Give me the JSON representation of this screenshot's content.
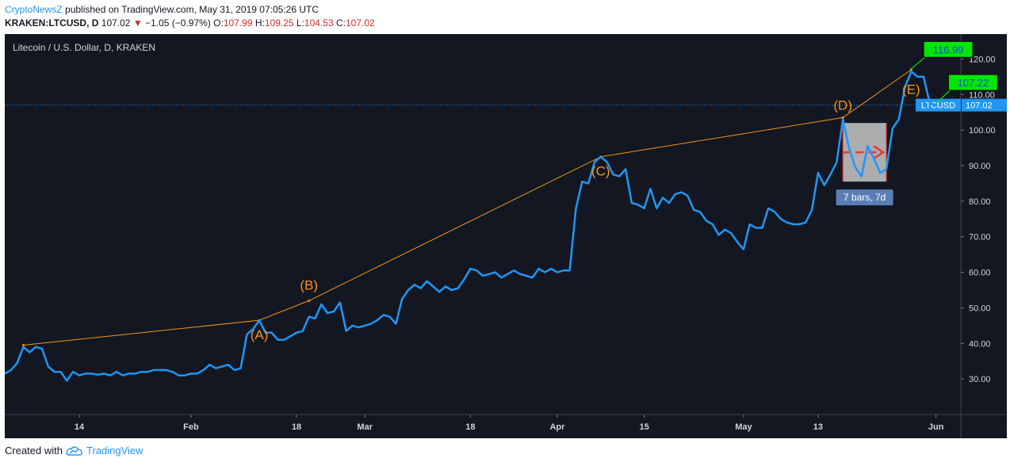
{
  "header": {
    "brand": "CryptoNewsZ",
    "published_text": " published on TradingView.com, May 31, 2019 07:05:26 UTC"
  },
  "quote": {
    "symbol": "KRAKEN:LTCUSD, D",
    "last": "107.02",
    "down_arrow": "▼",
    "change": "−1.05 (−0.97%)",
    "o_label": "O:",
    "o_val": "107.99",
    "h_label": "H:",
    "h_val": "109.25",
    "l_label": "L:",
    "l_val": "104.53",
    "c_label": "C:",
    "c_val": "107.02"
  },
  "footer": {
    "created_with": "Created with",
    "tradingview": "TradingView",
    "logo_icon": "tradingview-cloud-icon"
  },
  "colors": {
    "background": "#131722",
    "price_line": "#2196f3",
    "trend_line": "#f7931a",
    "label_green": "#00e600",
    "box_fill": "#c8c8c8",
    "arrow_red": "#e53935"
  },
  "chart_data": {
    "type": "line",
    "title": "Litecoin / U.S. Dollar, D, KRAKEN",
    "xlabel": "",
    "ylabel": "",
    "ylim": [
      20,
      127
    ],
    "yticks": [
      30,
      40,
      50,
      60,
      70,
      80,
      90,
      100,
      110,
      120
    ],
    "ytick_labels": [
      "30.00",
      "40.00",
      "50.00",
      "60.00",
      "70.00",
      "80.00",
      "90.00",
      "100.00",
      "110.00",
      "120.00"
    ],
    "x_start": "2019-01-02",
    "x_end": "2019-06-05",
    "xticks": [
      {
        "date": "2019-01-14",
        "label": "14"
      },
      {
        "date": "2019-02-01",
        "label": "Feb"
      },
      {
        "date": "2019-02-18",
        "label": "18"
      },
      {
        "date": "2019-03-01",
        "label": "Mar"
      },
      {
        "date": "2019-03-18",
        "label": "18"
      },
      {
        "date": "2019-04-01",
        "label": "Apr"
      },
      {
        "date": "2019-04-15",
        "label": "15"
      },
      {
        "date": "2019-05-01",
        "label": "May"
      },
      {
        "date": "2019-05-13",
        "label": "13"
      },
      {
        "date": "2019-06-01",
        "label": "Jun"
      }
    ],
    "series": [
      {
        "name": "LTCUSD",
        "color": "#2196f3",
        "points": [
          [
            "2019-01-02",
            31.5
          ],
          [
            "2019-01-03",
            32.5
          ],
          [
            "2019-01-04",
            34.5
          ],
          [
            "2019-01-05",
            39
          ],
          [
            "2019-01-06",
            37.5
          ],
          [
            "2019-01-07",
            39
          ],
          [
            "2019-01-08",
            38.5
          ],
          [
            "2019-01-09",
            33.5
          ],
          [
            "2019-01-10",
            32
          ],
          [
            "2019-01-11",
            32
          ],
          [
            "2019-01-12",
            29.5
          ],
          [
            "2019-01-13",
            32
          ],
          [
            "2019-01-14",
            31
          ],
          [
            "2019-01-15",
            31.5
          ],
          [
            "2019-01-16",
            31.5
          ],
          [
            "2019-01-17",
            31.2
          ],
          [
            "2019-01-18",
            31.5
          ],
          [
            "2019-01-19",
            31
          ],
          [
            "2019-01-20",
            32
          ],
          [
            "2019-01-21",
            31
          ],
          [
            "2019-01-22",
            31.5
          ],
          [
            "2019-01-23",
            31.5
          ],
          [
            "2019-01-24",
            32
          ],
          [
            "2019-01-25",
            32
          ],
          [
            "2019-01-26",
            32.5
          ],
          [
            "2019-01-27",
            32.5
          ],
          [
            "2019-01-28",
            32.5
          ],
          [
            "2019-01-29",
            32
          ],
          [
            "2019-01-30",
            31
          ],
          [
            "2019-01-31",
            31
          ],
          [
            "2019-02-01",
            31.5
          ],
          [
            "2019-02-02",
            31.5
          ],
          [
            "2019-02-03",
            32.5
          ],
          [
            "2019-02-04",
            34
          ],
          [
            "2019-02-05",
            33
          ],
          [
            "2019-02-06",
            33.5
          ],
          [
            "2019-02-07",
            34
          ],
          [
            "2019-02-08",
            32.5
          ],
          [
            "2019-02-09",
            33
          ],
          [
            "2019-02-10",
            42.5
          ],
          [
            "2019-02-11",
            44
          ],
          [
            "2019-02-12",
            46.5
          ],
          [
            "2019-02-13",
            43
          ],
          [
            "2019-02-14",
            43
          ],
          [
            "2019-02-15",
            41
          ],
          [
            "2019-02-16",
            41
          ],
          [
            "2019-02-17",
            42
          ],
          [
            "2019-02-18",
            43
          ],
          [
            "2019-02-19",
            43.5
          ],
          [
            "2019-02-20",
            47.5
          ],
          [
            "2019-02-21",
            47
          ],
          [
            "2019-02-22",
            51
          ],
          [
            "2019-02-23",
            48.5
          ],
          [
            "2019-02-24",
            49
          ],
          [
            "2019-02-25",
            51.5
          ],
          [
            "2019-02-26",
            43.5
          ],
          [
            "2019-02-27",
            45
          ],
          [
            "2019-02-28",
            44.5
          ],
          [
            "2019-03-01",
            45
          ],
          [
            "2019-03-02",
            45.5
          ],
          [
            "2019-03-03",
            46.5
          ],
          [
            "2019-03-04",
            48
          ],
          [
            "2019-03-05",
            47.5
          ],
          [
            "2019-03-06",
            45.5
          ],
          [
            "2019-03-07",
            52.5
          ],
          [
            "2019-03-08",
            55
          ],
          [
            "2019-03-09",
            56.5
          ],
          [
            "2019-03-10",
            55.5
          ],
          [
            "2019-03-11",
            57.5
          ],
          [
            "2019-03-12",
            56
          ],
          [
            "2019-03-13",
            54.5
          ],
          [
            "2019-03-14",
            56
          ],
          [
            "2019-03-15",
            55
          ],
          [
            "2019-03-16",
            55.5
          ],
          [
            "2019-03-17",
            58
          ],
          [
            "2019-03-18",
            61
          ],
          [
            "2019-03-19",
            60.5
          ],
          [
            "2019-03-20",
            59
          ],
          [
            "2019-03-21",
            59.5
          ],
          [
            "2019-03-22",
            60
          ],
          [
            "2019-03-23",
            58.5
          ],
          [
            "2019-03-24",
            59.5
          ],
          [
            "2019-03-25",
            60.5
          ],
          [
            "2019-03-26",
            59.5
          ],
          [
            "2019-03-27",
            59
          ],
          [
            "2019-03-28",
            58.5
          ],
          [
            "2019-03-29",
            61
          ],
          [
            "2019-03-30",
            60
          ],
          [
            "2019-03-31",
            61
          ],
          [
            "2019-04-01",
            60
          ],
          [
            "2019-04-02",
            60.5
          ],
          [
            "2019-04-03",
            60.5
          ],
          [
            "2019-04-04",
            78
          ],
          [
            "2019-04-05",
            85.5
          ],
          [
            "2019-04-06",
            85
          ],
          [
            "2019-04-07",
            91
          ],
          [
            "2019-04-08",
            92.5
          ],
          [
            "2019-04-09",
            91
          ],
          [
            "2019-04-10",
            87.5
          ],
          [
            "2019-04-11",
            87
          ],
          [
            "2019-04-12",
            89
          ],
          [
            "2019-04-13",
            79.5
          ],
          [
            "2019-04-14",
            79
          ],
          [
            "2019-04-15",
            78
          ],
          [
            "2019-04-16",
            83.5
          ],
          [
            "2019-04-17",
            78
          ],
          [
            "2019-04-18",
            81
          ],
          [
            "2019-04-19",
            79.5
          ],
          [
            "2019-04-20",
            82
          ],
          [
            "2019-04-21",
            82.5
          ],
          [
            "2019-04-22",
            81.5
          ],
          [
            "2019-04-23",
            77.5
          ],
          [
            "2019-04-24",
            77
          ],
          [
            "2019-04-25",
            74.5
          ],
          [
            "2019-04-26",
            73.5
          ],
          [
            "2019-04-27",
            70.5
          ],
          [
            "2019-04-28",
            72
          ],
          [
            "2019-04-29",
            71
          ],
          [
            "2019-04-30",
            68.5
          ],
          [
            "2019-05-01",
            66.5
          ],
          [
            "2019-05-02",
            73.5
          ],
          [
            "2019-05-03",
            72.5
          ],
          [
            "2019-05-04",
            72.5
          ],
          [
            "2019-05-05",
            78
          ],
          [
            "2019-05-06",
            77
          ],
          [
            "2019-05-07",
            75
          ],
          [
            "2019-05-08",
            74
          ],
          [
            "2019-05-09",
            73.5
          ],
          [
            "2019-05-10",
            73.5
          ],
          [
            "2019-05-11",
            74
          ],
          [
            "2019-05-12",
            77.5
          ],
          [
            "2019-05-13",
            88
          ],
          [
            "2019-05-14",
            84.5
          ],
          [
            "2019-05-15",
            87.5
          ],
          [
            "2019-05-16",
            91
          ],
          [
            "2019-05-17",
            103
          ],
          [
            "2019-05-18",
            95
          ],
          [
            "2019-05-19",
            89.5
          ],
          [
            "2019-05-20",
            87
          ],
          [
            "2019-05-21",
            95.5
          ],
          [
            "2019-05-22",
            92
          ],
          [
            "2019-05-23",
            88
          ],
          [
            "2019-05-24",
            89
          ],
          [
            "2019-05-25",
            100.5
          ],
          [
            "2019-05-26",
            103
          ],
          [
            "2019-05-27",
            112
          ],
          [
            "2019-05-28",
            116.5
          ],
          [
            "2019-05-29",
            115
          ],
          [
            "2019-05-30",
            115
          ],
          [
            "2019-05-31",
            107.5
          ],
          [
            "2019-06-01",
            107
          ]
        ]
      }
    ],
    "trend_line": {
      "color": "#f7931a",
      "points": [
        [
          "2019-01-05",
          39.5
        ],
        [
          "2019-02-12",
          46.5
        ],
        [
          "2019-02-20",
          52
        ],
        [
          "2019-04-08",
          92.5
        ],
        [
          "2019-05-17",
          103.5
        ],
        [
          "2019-05-28",
          117
        ]
      ]
    },
    "wave_labels": [
      {
        "text": "(A)",
        "date": "2019-02-12",
        "value": 42.5
      },
      {
        "text": "(B)",
        "date": "2019-02-20",
        "value": 56.5
      },
      {
        "text": "(C)",
        "date": "2019-04-08",
        "value": 88.5
      },
      {
        "text": "(D)",
        "date": "2019-05-17",
        "value": 107
      },
      {
        "text": "(E)",
        "date": "2019-05-28",
        "value": 111.5
      }
    ],
    "callouts": [
      {
        "text": "116.99",
        "anchor_date": "2019-05-28",
        "anchor_value": 117.2,
        "box_date": "2019-05-30",
        "box_value": 122.7
      },
      {
        "text": "107.22",
        "anchor_date": "2019-06-01",
        "anchor_value": 107.5,
        "box_date": "2019-06-03",
        "box_value": 113.4
      }
    ],
    "range_box": {
      "start_date": "2019-05-17",
      "end_date": "2019-05-24",
      "top": 102,
      "bottom": 85.5,
      "label": "7 bars, 7d"
    },
    "current_price": {
      "symbol": "LTCUSD",
      "value": 107.02
    }
  }
}
